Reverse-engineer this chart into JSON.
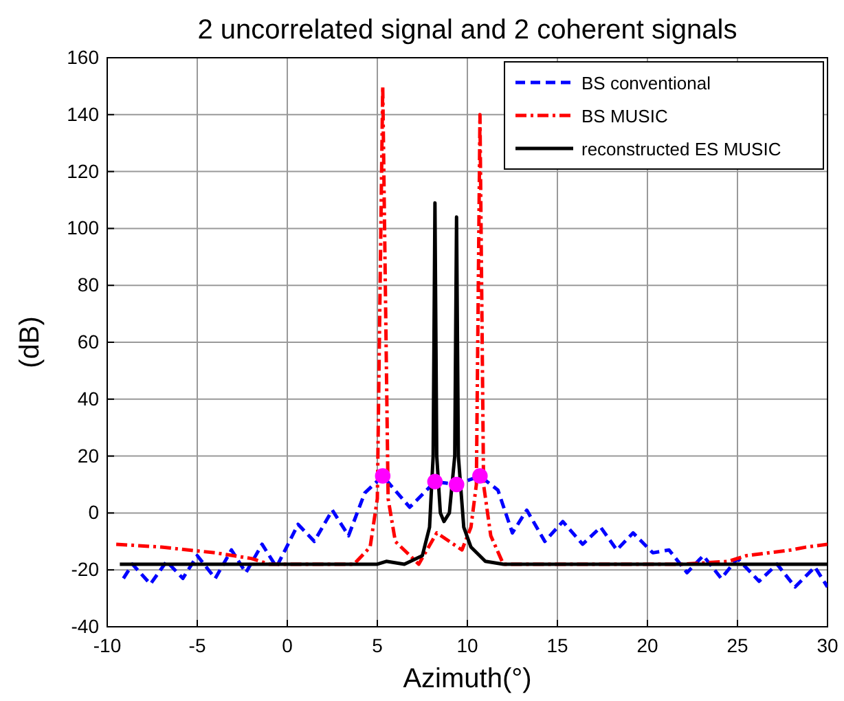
{
  "chart_data": {
    "type": "line",
    "title": "2 uncorrelated signal and 2 coherent signals",
    "xlabel": "Azimuth(°)",
    "ylabel": "(dB)",
    "xlim": [
      -10,
      30
    ],
    "xticks": [
      -10,
      -5,
      0,
      5,
      10,
      15,
      20,
      25,
      30
    ],
    "ylim": [
      -40,
      160
    ],
    "yticks": [
      -40,
      -20,
      0,
      20,
      40,
      60,
      80,
      100,
      120,
      140,
      160
    ],
    "grid": true,
    "legend": "top right",
    "series": [
      {
        "name": "BS conventional",
        "color": "#0000ff",
        "line_style": "dashed",
        "x": [
          -9.1,
          -8.6,
          -7.6,
          -6.7,
          -5.8,
          -5.0,
          -4.0,
          -3.1,
          -2.3,
          -1.4,
          -0.6,
          0.6,
          1.5,
          2.5,
          3.4,
          4.3,
          5.3,
          6.8,
          8.2,
          9.4,
          10.7,
          11.7,
          12.5,
          13.3,
          14.3,
          15.3,
          16.4,
          17.4,
          18.3,
          19.2,
          20.3,
          21.2,
          22.2,
          23.1,
          24.1,
          25.0,
          26.2,
          27.2,
          28.2,
          29.3,
          30
        ],
        "values": [
          -23,
          -18,
          -25,
          -17,
          -23,
          -15,
          -23,
          -13,
          -21,
          -11,
          -19,
          -4,
          -10,
          1,
          -8,
          7,
          13,
          2,
          11,
          10,
          13,
          8,
          -7,
          1,
          -10,
          -3,
          -11,
          -5,
          -13,
          -7,
          -14,
          -13,
          -21,
          -15,
          -23,
          -16,
          -24,
          -18,
          -26,
          -19,
          -26
        ]
      },
      {
        "name": "BS MUSIC",
        "color": "#ff0000",
        "line_style": "dashdot",
        "x": [
          -9.5,
          -7,
          -4,
          -2,
          -1,
          3.7,
          4.6,
          5.0,
          5.3,
          5.6,
          6.0,
          7.3,
          8.3,
          9.0,
          9.7,
          10.2,
          10.5,
          10.7,
          10.9,
          11.3,
          12,
          22,
          24.5,
          25.5,
          28,
          28.8,
          30
        ],
        "values": [
          -11,
          -12,
          -14,
          -16,
          -18,
          -18,
          -12,
          5,
          150,
          5,
          -10,
          -18,
          -7,
          -10,
          -13,
          -5,
          10,
          140,
          10,
          -8,
          -18,
          -18,
          -17,
          -15,
          -13,
          -12,
          -11
        ]
      },
      {
        "name": "reconstructed ES MUSIC",
        "color": "#000000",
        "line_style": "solid",
        "x": [
          -9.3,
          5,
          5.5,
          6.5,
          7.5,
          7.9,
          8.1,
          8.2,
          8.3,
          8.5,
          8.7,
          9.0,
          9.3,
          9.4,
          9.5,
          9.8,
          10.2,
          11,
          12,
          30
        ],
        "values": [
          -18,
          -18,
          -17,
          -18,
          -15,
          -5,
          20,
          109,
          20,
          0,
          -3,
          0,
          20,
          104,
          20,
          -5,
          -12,
          -17,
          -18,
          -18
        ]
      },
      {
        "type": "scatter",
        "color": "#ff00ff",
        "marker": "circle",
        "x": [
          5.3,
          8.2,
          9.4,
          10.7
        ],
        "values": [
          13,
          11,
          10,
          13
        ]
      }
    ]
  }
}
